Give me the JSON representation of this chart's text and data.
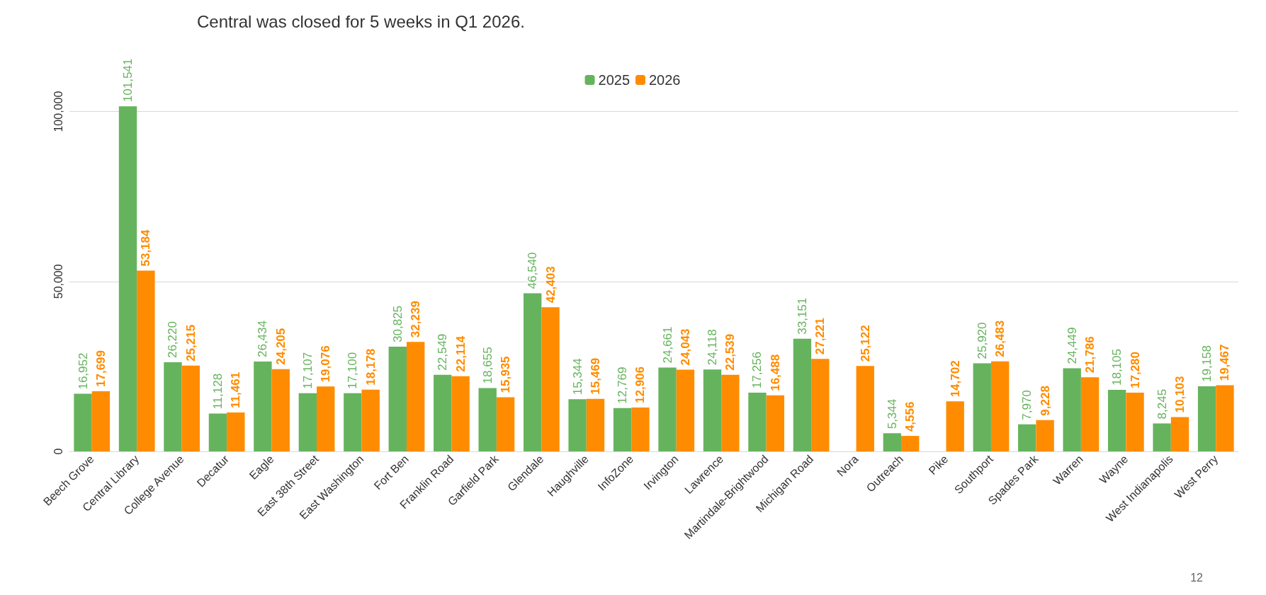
{
  "chart_data": {
    "type": "bar",
    "annotations": [
      "Central was closed for 5 weeks in Q1 2026.",
      "12"
    ],
    "categories": [
      "Beech Grove",
      "Central Library",
      "College Avenue",
      "Decatur",
      "Eagle",
      "East 38th Street",
      "East Washington",
      "Fort Ben",
      "Franklin Road",
      "Garfield Park",
      "Glendale",
      "Haughville",
      "InfoZone",
      "Irvington",
      "Lawrence",
      "Martindale-Brightwood",
      "Michigan Road",
      "Nora",
      "Outreach",
      "Pike",
      "Southport",
      "Spades Park",
      "Warren",
      "Wayne",
      "West Indianapolis",
      "West Perry"
    ],
    "series": [
      {
        "name": "2025",
        "color": "#66b35e",
        "values": [
          16952,
          101541,
          26220,
          11128,
          26434,
          17107,
          17100,
          30825,
          22549,
          18655,
          46540,
          15344,
          12769,
          24661,
          24118,
          17256,
          33151,
          null,
          5344,
          null,
          25920,
          7970,
          24449,
          18105,
          8245,
          19158
        ],
        "value_labels": [
          "16,952",
          "101,541",
          "26,220",
          "11,128",
          "26,434",
          "17,107",
          "17,100",
          "30,825",
          "22,549",
          "18,655",
          "46,540",
          "15,344",
          "12,769",
          "24,661",
          "24,118",
          "17,256",
          "33,151",
          null,
          "5,344",
          null,
          "25,920",
          "7,970",
          "24,449",
          "18,105",
          "8,245",
          "19,158"
        ]
      },
      {
        "name": "2026",
        "color": "#ff8c00",
        "values": [
          17699,
          53184,
          25215,
          11461,
          24205,
          19076,
          18178,
          32239,
          22114,
          15935,
          42403,
          15469,
          12906,
          24043,
          22539,
          16488,
          27221,
          25122,
          4556,
          14702,
          26483,
          9228,
          21786,
          17280,
          10103,
          19467
        ],
        "value_labels": [
          "17,699",
          "53,184",
          "25,215",
          "11,461",
          "24,205",
          "19,076",
          "18,178",
          "32,239",
          "22,114",
          "15,935",
          "42,403",
          "15,469",
          "12,906",
          "24,043",
          "22,539",
          "16,488",
          "27,221",
          "25,122",
          "4,556",
          "14,702",
          "26,483",
          "9,228",
          "21,786",
          "17,280",
          "10,103",
          "19,467"
        ]
      }
    ],
    "ylim": [
      0,
      102000
    ],
    "yticks": [
      0,
      {
        "value": 50000,
        "label": "50,000"
      },
      {
        "value": 100000,
        "label": "100,000"
      }
    ],
    "grid": "y",
    "legend": "top"
  }
}
